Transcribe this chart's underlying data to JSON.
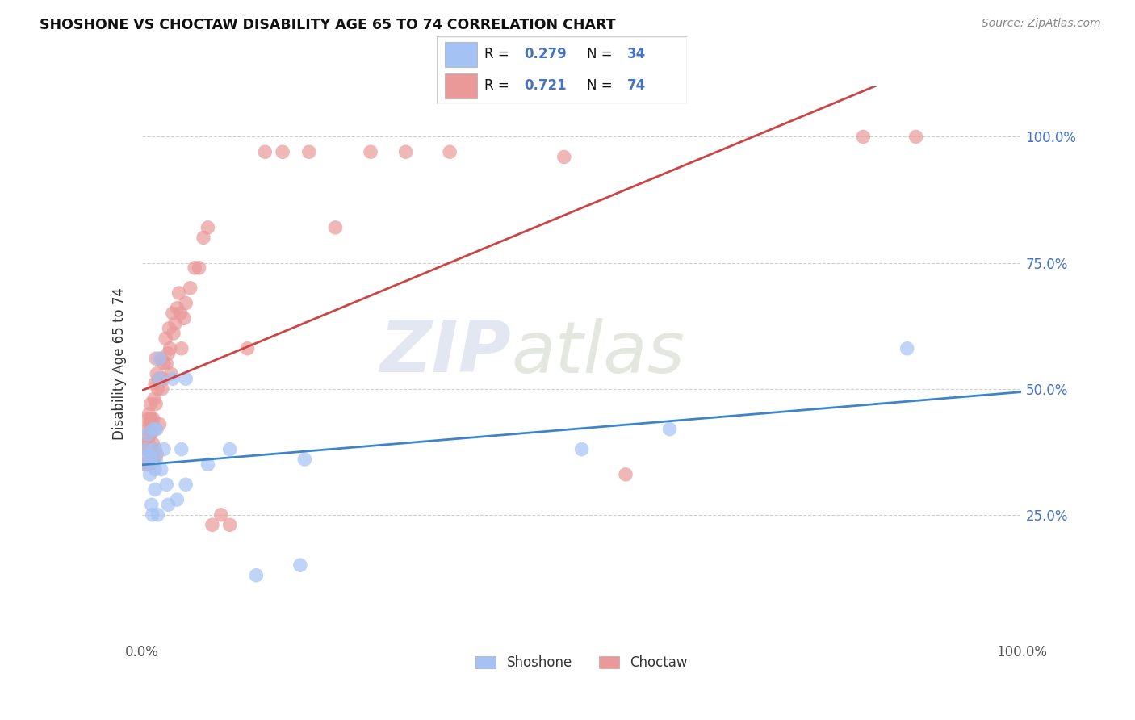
{
  "title": "SHOSHONE VS CHOCTAW DISABILITY AGE 65 TO 74 CORRELATION CHART",
  "source": "Source: ZipAtlas.com",
  "ylabel": "Disability Age 65 to 74",
  "shoshone_color": "#a4c2f4",
  "choctaw_color": "#ea9999",
  "shoshone_line_color": "#3d85c8",
  "choctaw_line_color": "#cc4444",
  "shoshone_R": 0.279,
  "shoshone_N": 34,
  "choctaw_R": 0.721,
  "choctaw_N": 74,
  "watermark_zip": "ZIP",
  "watermark_atlas": "atlas",
  "shoshone_x": [
    0.5,
    0.5,
    0.7,
    0.8,
    0.9,
    1.0,
    1.1,
    1.2,
    1.3,
    1.4,
    1.5,
    1.5,
    1.6,
    1.7,
    1.8,
    2.0,
    2.0,
    2.2,
    2.5,
    2.8,
    3.0,
    3.5,
    4.0,
    4.5,
    5.0,
    5.0,
    7.5,
    10.0,
    13.0,
    18.0,
    18.5,
    50.0,
    87.0,
    60.0
  ],
  "shoshone_y": [
    38.0,
    35.0,
    41.0,
    37.0,
    33.0,
    36.0,
    27.0,
    25.0,
    42.0,
    38.0,
    34.0,
    30.0,
    36.0,
    42.0,
    25.0,
    56.0,
    52.0,
    34.0,
    38.0,
    31.0,
    27.0,
    52.0,
    28.0,
    38.0,
    31.0,
    52.0,
    35.0,
    38.0,
    13.0,
    15.0,
    36.0,
    38.0,
    58.0,
    42.0
  ],
  "choctaw_x": [
    0.3,
    0.4,
    0.5,
    0.5,
    0.6,
    0.6,
    0.7,
    0.7,
    0.8,
    0.8,
    0.9,
    0.9,
    0.9,
    1.0,
    1.0,
    1.0,
    1.0,
    1.1,
    1.1,
    1.2,
    1.2,
    1.3,
    1.3,
    1.4,
    1.4,
    1.5,
    1.5,
    1.5,
    1.6,
    1.6,
    1.7,
    1.7,
    1.8,
    1.9,
    2.0,
    2.2,
    2.3,
    2.4,
    2.5,
    2.7,
    2.8,
    3.0,
    3.1,
    3.2,
    3.3,
    3.5,
    3.6,
    3.8,
    4.0,
    4.2,
    4.4,
    4.5,
    4.8,
    5.0,
    5.5,
    6.0,
    6.5,
    7.0,
    7.5,
    8.0,
    9.0,
    10.0,
    12.0,
    14.0,
    16.0,
    19.0,
    22.0,
    26.0,
    30.0,
    35.0,
    48.0,
    55.0,
    82.0,
    88.0
  ],
  "choctaw_y": [
    35.0,
    39.0,
    37.0,
    40.0,
    38.0,
    42.0,
    35.0,
    44.0,
    39.0,
    45.0,
    41.0,
    35.0,
    43.0,
    47.0,
    44.0,
    37.0,
    41.0,
    36.0,
    44.0,
    43.0,
    38.0,
    39.0,
    44.0,
    48.0,
    36.0,
    42.0,
    51.0,
    38.0,
    47.0,
    56.0,
    53.0,
    37.0,
    50.0,
    52.0,
    43.0,
    56.0,
    50.0,
    52.0,
    55.0,
    60.0,
    55.0,
    57.0,
    62.0,
    58.0,
    53.0,
    65.0,
    61.0,
    63.0,
    66.0,
    69.0,
    65.0,
    58.0,
    64.0,
    67.0,
    70.0,
    74.0,
    74.0,
    80.0,
    82.0,
    23.0,
    25.0,
    23.0,
    58.0,
    97.0,
    97.0,
    97.0,
    82.0,
    97.0,
    97.0,
    97.0,
    96.0,
    33.0,
    100.0,
    100.0
  ]
}
